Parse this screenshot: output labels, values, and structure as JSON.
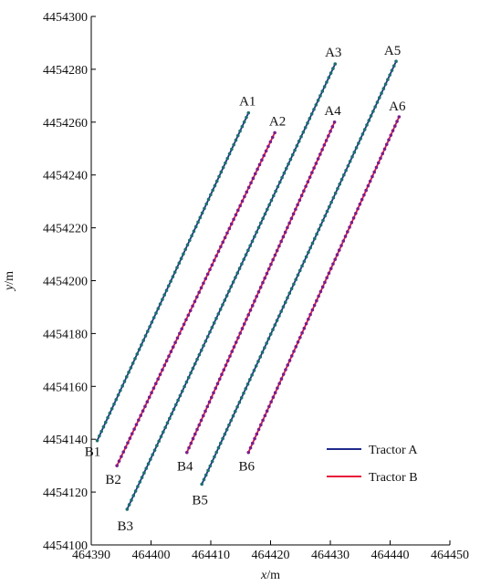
{
  "chart_data": {
    "type": "line",
    "xlabel": "x",
    "xunit": "/m",
    "ylabel": "y",
    "yunit": "/m",
    "xlim": [
      464390,
      464450
    ],
    "ylim": [
      4454100,
      4454300
    ],
    "xticks": [
      464390,
      464400,
      464410,
      464420,
      464430,
      464440,
      464450
    ],
    "yticks": [
      4454100,
      4454120,
      4454140,
      4454160,
      4454180,
      4454200,
      4454220,
      4454240,
      4454260,
      4454280,
      4454300
    ],
    "grid": false,
    "legend_position": "bottom-right",
    "series": [
      {
        "name": "Tractor A",
        "color": "#1f2a8c",
        "dot_color": "#1f6f6f",
        "segments": [
          {
            "from": [
              464391.0,
              4454139.5
            ],
            "to": [
              464416.3,
              4454263.5
            ],
            "start_label": "B1",
            "end_label": "A1"
          },
          {
            "from": [
              464396.0,
              4454113.5
            ],
            "to": [
              464430.8,
              4454282.0
            ],
            "start_label": "B3",
            "end_label": "A3"
          },
          {
            "from": [
              464408.5,
              4454123.0
            ],
            "to": [
              464441.0,
              4454283.0
            ],
            "start_label": "B5",
            "end_label": "A5"
          }
        ]
      },
      {
        "name": "Tractor B",
        "color": "#e8163c",
        "dot_color": "#7a1f8a",
        "segments": [
          {
            "from": [
              464394.3,
              4454130.0
            ],
            "to": [
              464420.7,
              4454256.0
            ],
            "start_label": "B2",
            "end_label": "A2"
          },
          {
            "from": [
              464406.0,
              4454135.0
            ],
            "to": [
              464430.7,
              4454260.0
            ],
            "start_label": "B4",
            "end_label": "A4"
          },
          {
            "from": [
              464416.3,
              4454135.0
            ],
            "to": [
              464441.5,
              4454262.0
            ],
            "start_label": "B6",
            "end_label": "A6"
          }
        ]
      }
    ]
  }
}
